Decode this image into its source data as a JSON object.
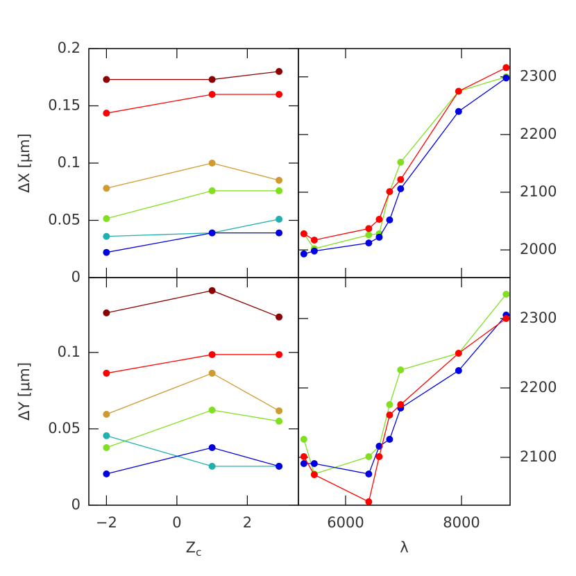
{
  "chart_data": [
    {
      "type": "line",
      "ylabel": "ΔX [μm]",
      "x": [
        -2,
        1,
        2.9
      ],
      "xlim": [
        -2.5,
        3.45
      ],
      "xticks": [
        {
          "value": -2,
          "label": "−2"
        },
        0,
        2
      ],
      "xtick_labels": false,
      "ylim": [
        0,
        0.2
      ],
      "yticks": [
        0,
        0.05,
        0.1,
        0.15,
        0.2
      ],
      "yaxis_side": "left",
      "series": [
        {
          "color": "#8b0000",
          "values": [
            0.173,
            0.173,
            0.18
          ]
        },
        {
          "color": "#ff0000",
          "values": [
            0.1436,
            0.16,
            0.16
          ]
        },
        {
          "color": "#d09a30",
          "values": [
            0.078,
            0.1,
            0.085
          ]
        },
        {
          "color": "#80e020",
          "values": [
            0.0515,
            0.0758,
            0.0758
          ]
        },
        {
          "color": "#20b0b0",
          "values": [
            0.036,
            0.039,
            0.051
          ]
        },
        {
          "color": "#0000e0",
          "values": [
            0.022,
            0.039,
            0.039
          ]
        }
      ]
    },
    {
      "type": "line",
      "x": [
        5280,
        5460,
        6400,
        6580,
        6760,
        6950,
        7950,
        8770
      ],
      "xlim": [
        5186,
        8838
      ],
      "xticks": [
        6000,
        8000
      ],
      "xtick_labels": false,
      "ylim": [
        1952,
        2349
      ],
      "yticks": [
        2000,
        2100,
        2200,
        2300
      ],
      "yaxis_side": "right",
      "series": [
        {
          "color": "#80e020",
          "values": [
            2028,
            2002,
            2026,
            2028,
            2101,
            2152,
            2275,
            2300
          ]
        },
        {
          "color": "#0000e0",
          "values": [
            1993,
            1998,
            2012,
            2022,
            2052,
            2106,
            2240,
            2298
          ]
        },
        {
          "color": "#ff0000",
          "values": [
            2028,
            2017,
            2037,
            2053,
            2101,
            2122,
            2275,
            2316
          ]
        }
      ]
    },
    {
      "type": "line",
      "ylabel": "ΔY [μm]",
      "xlabel": {
        "base": "Z",
        "sub": "c"
      },
      "x": [
        -2,
        1,
        2.9
      ],
      "xlim": [
        -2.5,
        3.45
      ],
      "xticks": [
        {
          "value": -2,
          "label": "−2"
        },
        0,
        2
      ],
      "xtick_labels": true,
      "ylim": [
        0,
        0.149
      ],
      "yticks": [
        0,
        0.05,
        0.1
      ],
      "yaxis_side": "left",
      "series": [
        {
          "color": "#8b0000",
          "values": [
            0.1259,
            0.1405,
            0.1232
          ]
        },
        {
          "color": "#ff0000",
          "values": [
            0.0864,
            0.0986,
            0.0986
          ]
        },
        {
          "color": "#d09a30",
          "values": [
            0.0595,
            0.0864,
            0.0618
          ]
        },
        {
          "color": "#80e020",
          "values": [
            0.0377,
            0.0623,
            0.055
          ]
        },
        {
          "color": "#20b0b0",
          "values": [
            0.0455,
            0.0255,
            0.0255
          ]
        },
        {
          "color": "#0000e0",
          "values": [
            0.0205,
            0.0377,
            0.0255
          ]
        }
      ]
    },
    {
      "type": "line",
      "xlabel": {
        "base": "λ"
      },
      "x": [
        5280,
        5460,
        6400,
        6580,
        6760,
        6950,
        7950,
        8770
      ],
      "xlim": [
        5186,
        8838
      ],
      "xticks": [
        6000,
        8000
      ],
      "xtick_labels": true,
      "ylim": [
        2031,
        2359
      ],
      "yticks": [
        2100,
        2200,
        2300
      ],
      "yaxis_side": "right",
      "series": [
        {
          "color": "#80e020",
          "values": [
            2126,
            2076,
            2101,
            2116,
            2176,
            2226,
            2250,
            2335
          ]
        },
        {
          "color": "#0000e0",
          "values": [
            2091,
            2091,
            2076,
            2116,
            2126,
            2171,
            2225,
            2305
          ]
        },
        {
          "color": "#ff0000",
          "values": [
            2101,
            2075,
            2036,
            2101,
            2161,
            2176,
            2250,
            2300
          ]
        }
      ]
    }
  ]
}
